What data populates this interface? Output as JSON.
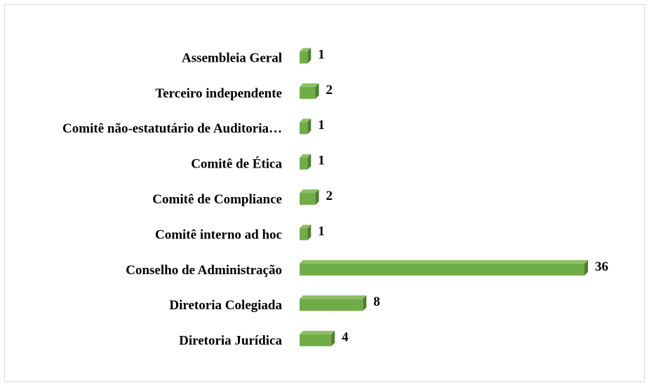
{
  "chart_data": {
    "type": "bar",
    "orientation": "horizontal",
    "categories": [
      "Assembleia Geral",
      "Terceiro independente",
      "Comitê não-estatutário de Auditoria…",
      "Comitê de Ética",
      "Comitê de Compliance",
      "Comitê interno ad hoc",
      "Conselho de Administração",
      "Diretoria Colegiada",
      "Diretoria Jurídica"
    ],
    "values": [
      1,
      2,
      1,
      1,
      2,
      1,
      36,
      8,
      4
    ],
    "color": "#70ad47"
  }
}
